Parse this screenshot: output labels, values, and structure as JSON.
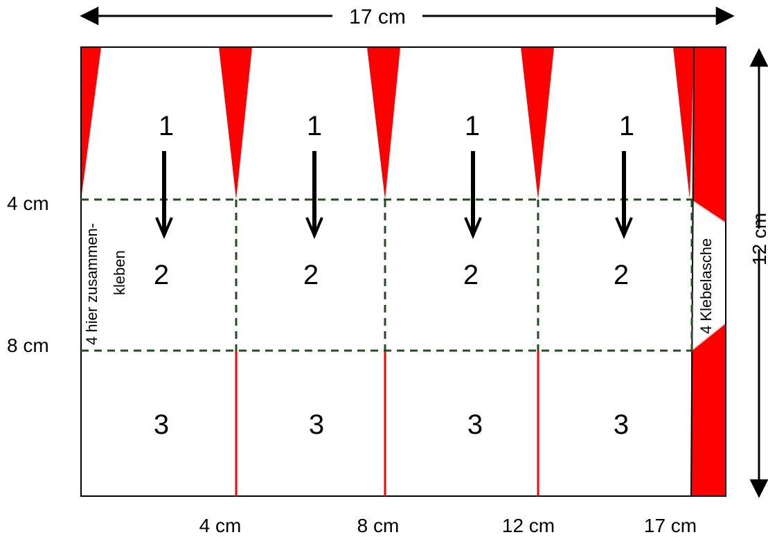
{
  "dimensions": {
    "total_width_label": "17 cm",
    "total_height_label": "12 cm"
  },
  "left_labels": {
    "fold_1": "4 cm",
    "fold_2": "8 cm"
  },
  "bottom_labels": [
    "4 cm",
    "8 cm",
    "12 cm",
    "17 cm"
  ],
  "panels": [
    {
      "row1": "1",
      "row2": "2",
      "row3": "3"
    },
    {
      "row1": "1",
      "row2": "2",
      "row3": "3"
    },
    {
      "row1": "1",
      "row2": "2",
      "row3": "3"
    },
    {
      "row1": "1",
      "row2": "2",
      "row3": "3"
    }
  ],
  "glue_note": {
    "line1": "4 hier zusammen-",
    "line2": "kleben"
  },
  "tab_label": "4 Klebelasche",
  "colors": {
    "cut": "#ff0000",
    "fold_line": "#1f4f1f",
    "outline": "#000000",
    "arrow": "#000000"
  }
}
